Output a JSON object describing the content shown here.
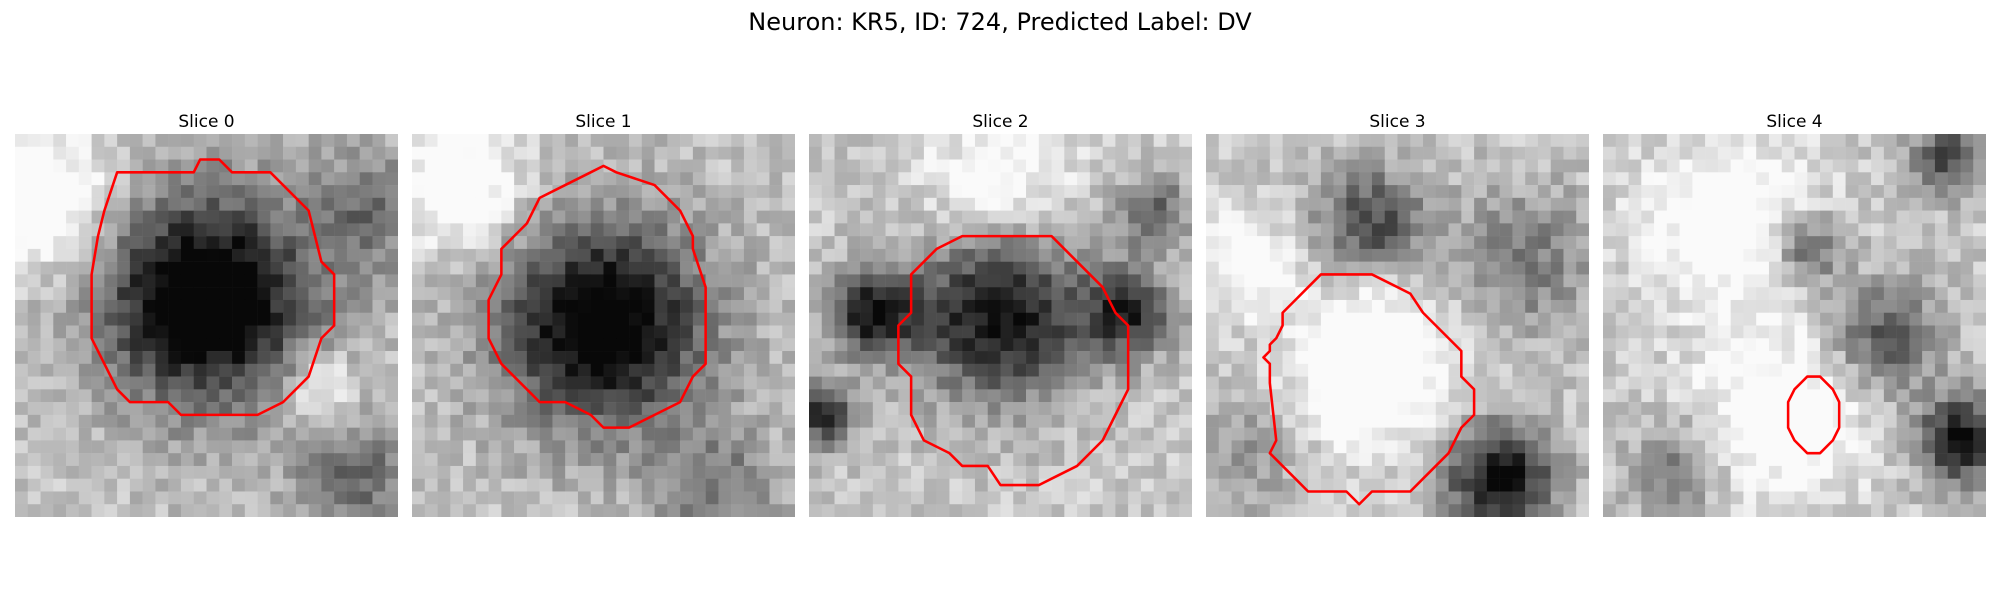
{
  "figure": {
    "title": "Neuron: KR5, ID: 724, Predicted Label: DV"
  },
  "grid_size": 30,
  "contour_color": "#ff0000",
  "panels": [
    {
      "label": "Slice 0",
      "seed": 11,
      "blobs": [
        {
          "cx": 15,
          "cy": 13,
          "r": 7.5,
          "dark": 0.75
        },
        {
          "cx": 15,
          "cy": 13,
          "r": 12,
          "dark": 0.25
        },
        {
          "cx": 2,
          "cy": 5,
          "r": 6,
          "bright": 0.4
        },
        {
          "cx": 27,
          "cy": 27,
          "r": 5,
          "dark": 0.35
        },
        {
          "cx": 28,
          "cy": 6,
          "r": 5,
          "dark": 0.3
        },
        {
          "cx": 24,
          "cy": 20,
          "r": 3,
          "bright": 0.35
        }
      ],
      "contour": [
        [
          8,
          3
        ],
        [
          14,
          3
        ],
        [
          14.5,
          2
        ],
        [
          16,
          2
        ],
        [
          17,
          3
        ],
        [
          20,
          3
        ],
        [
          23,
          6
        ],
        [
          23.5,
          8
        ],
        [
          24,
          10
        ],
        [
          25,
          11
        ],
        [
          25,
          15
        ],
        [
          24,
          16
        ],
        [
          23,
          19
        ],
        [
          21,
          21
        ],
        [
          19,
          22
        ],
        [
          13,
          22
        ],
        [
          12,
          21
        ],
        [
          9,
          21
        ],
        [
          8,
          20
        ],
        [
          7.5,
          19
        ],
        [
          7,
          18
        ],
        [
          6,
          16
        ],
        [
          6,
          11
        ],
        [
          6.5,
          8
        ],
        [
          7,
          6
        ]
      ]
    },
    {
      "label": "Slice 1",
      "seed": 23,
      "blobs": [
        {
          "cx": 15,
          "cy": 15,
          "r": 7.5,
          "dark": 0.7
        },
        {
          "cx": 15,
          "cy": 15,
          "r": 12,
          "dark": 0.2
        },
        {
          "cx": 4,
          "cy": 4,
          "r": 5,
          "bright": 0.4
        },
        {
          "cx": 24,
          "cy": 28,
          "r": 5,
          "dark": 0.3
        }
      ],
      "contour": [
        [
          10,
          5
        ],
        [
          12,
          4
        ],
        [
          14,
          3
        ],
        [
          15,
          2.5
        ],
        [
          16,
          3
        ],
        [
          19,
          4
        ],
        [
          21,
          6
        ],
        [
          22,
          8
        ],
        [
          22,
          9
        ],
        [
          23,
          12
        ],
        [
          23,
          18
        ],
        [
          22,
          19
        ],
        [
          21,
          21
        ],
        [
          19,
          22
        ],
        [
          17,
          23
        ],
        [
          15,
          23
        ],
        [
          14,
          22
        ],
        [
          12,
          21
        ],
        [
          10,
          21
        ],
        [
          9,
          20
        ],
        [
          8,
          19
        ],
        [
          7,
          18
        ],
        [
          6,
          16
        ],
        [
          6,
          13
        ],
        [
          7,
          11
        ],
        [
          7,
          9
        ],
        [
          8,
          8
        ],
        [
          9,
          7
        ]
      ]
    },
    {
      "label": "Slice 2",
      "seed": 37,
      "blobs": [
        {
          "cx": 15,
          "cy": 14,
          "r": 7,
          "dark": 0.75
        },
        {
          "cx": 5,
          "cy": 14,
          "r": 3.5,
          "dark": 0.7
        },
        {
          "cx": 25,
          "cy": 14,
          "r": 3.5,
          "dark": 0.6
        },
        {
          "cx": 1,
          "cy": 22,
          "r": 2.5,
          "dark": 0.65
        },
        {
          "cx": 27,
          "cy": 6,
          "r": 3,
          "dark": 0.4
        },
        {
          "cx": 15,
          "cy": 4,
          "r": 6,
          "bright": 0.3
        }
      ],
      "contour": [
        [
          12,
          8
        ],
        [
          19,
          8
        ],
        [
          21,
          10
        ],
        [
          23,
          12
        ],
        [
          24,
          14
        ],
        [
          25,
          15
        ],
        [
          25,
          20
        ],
        [
          24,
          22
        ],
        [
          23,
          24
        ],
        [
          21,
          26
        ],
        [
          19,
          27
        ],
        [
          18,
          27.5
        ],
        [
          15,
          27.5
        ],
        [
          14,
          26
        ],
        [
          12,
          26
        ],
        [
          11,
          25
        ],
        [
          9,
          24
        ],
        [
          8,
          22
        ],
        [
          8,
          19
        ],
        [
          7,
          18
        ],
        [
          7,
          15
        ],
        [
          8,
          14
        ],
        [
          8,
          11
        ],
        [
          9,
          10
        ],
        [
          10,
          9
        ]
      ]
    },
    {
      "label": "Slice 3",
      "seed": 51,
      "blobs": [
        {
          "cx": 13,
          "cy": 18,
          "r": 6.5,
          "bright": 0.45
        },
        {
          "cx": 13,
          "cy": 7,
          "r": 4.5,
          "dark": 0.5
        },
        {
          "cx": 23,
          "cy": 27,
          "r": 4.5,
          "dark": 0.75
        },
        {
          "cx": 25,
          "cy": 10,
          "r": 6,
          "dark": 0.3
        },
        {
          "cx": 3,
          "cy": 10,
          "r": 4,
          "bright": 0.3
        },
        {
          "cx": 3,
          "cy": 25,
          "r": 5,
          "dark": 0.2
        }
      ],
      "contour": [
        [
          9,
          11
        ],
        [
          13,
          11
        ],
        [
          16,
          12.5
        ],
        [
          17,
          14
        ],
        [
          19,
          16
        ],
        [
          20,
          17
        ],
        [
          20,
          19
        ],
        [
          21,
          20
        ],
        [
          21,
          22
        ],
        [
          20,
          23
        ],
        [
          19,
          25
        ],
        [
          17,
          27
        ],
        [
          16,
          28
        ],
        [
          13,
          28
        ],
        [
          12,
          29
        ],
        [
          11,
          28
        ],
        [
          8,
          28
        ],
        [
          7,
          27
        ],
        [
          6,
          26
        ],
        [
          5,
          25
        ],
        [
          5.5,
          24
        ],
        [
          5,
          19.5
        ],
        [
          5,
          18
        ],
        [
          4.5,
          17.5
        ],
        [
          5,
          17
        ],
        [
          5,
          16.5
        ],
        [
          5.5,
          16
        ],
        [
          6,
          15
        ],
        [
          6,
          14
        ],
        [
          7,
          13
        ],
        [
          8,
          12
        ]
      ]
    },
    {
      "label": "Slice 4",
      "seed": 67,
      "blobs": [
        {
          "cx": 10,
          "cy": 7,
          "r": 7,
          "bright": 0.35
        },
        {
          "cx": 16,
          "cy": 9,
          "r": 3,
          "dark": 0.45
        },
        {
          "cx": 22,
          "cy": 16,
          "r": 4.5,
          "dark": 0.45
        },
        {
          "cx": 28,
          "cy": 24,
          "r": 3.5,
          "dark": 0.75
        },
        {
          "cx": 6,
          "cy": 26,
          "r": 4,
          "dark": 0.3
        },
        {
          "cx": 14,
          "cy": 22,
          "r": 7,
          "bright": 0.35
        },
        {
          "cx": 27,
          "cy": 2,
          "r": 3,
          "dark": 0.5
        }
      ],
      "contour": [
        [
          16,
          19
        ],
        [
          17,
          19
        ],
        [
          18,
          20
        ],
        [
          18.5,
          21
        ],
        [
          18.5,
          23
        ],
        [
          18,
          24
        ],
        [
          17,
          25
        ],
        [
          16,
          25
        ],
        [
          15,
          24
        ],
        [
          14.5,
          23
        ],
        [
          14.5,
          21
        ],
        [
          15,
          20
        ]
      ]
    }
  ]
}
